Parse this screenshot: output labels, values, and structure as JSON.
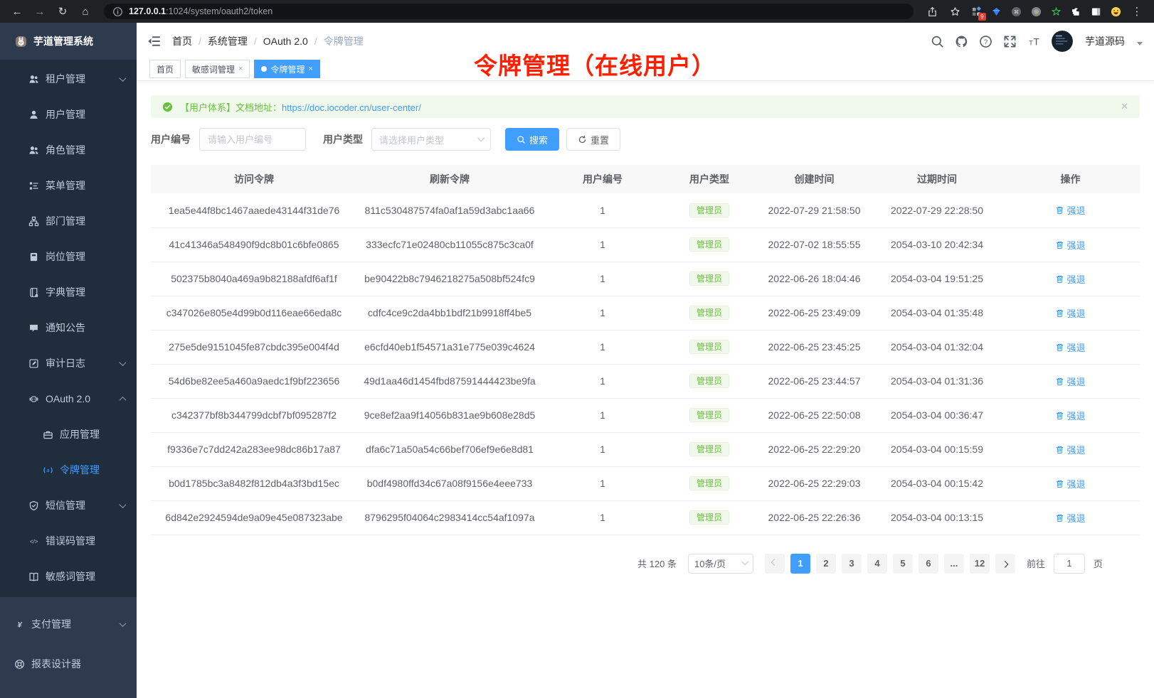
{
  "browser": {
    "url_host": "127.0.0.1",
    "url_rest": ":1024/system/oauth2/token",
    "extension_badge": "9"
  },
  "app": {
    "title": "芋道管理系统"
  },
  "sidebar": {
    "items": [
      {
        "label": "租户管理",
        "icon": "people"
      },
      {
        "label": "用户管理",
        "icon": "user"
      },
      {
        "label": "角色管理",
        "icon": "people"
      },
      {
        "label": "菜单管理",
        "icon": "tree"
      },
      {
        "label": "部门管理",
        "icon": "org"
      },
      {
        "label": "岗位管理",
        "icon": "badge"
      },
      {
        "label": "字典管理",
        "icon": "dict"
      },
      {
        "label": "通知公告",
        "icon": "bubble"
      },
      {
        "label": "审计日志",
        "icon": "edit"
      },
      {
        "label": "OAuth 2.0",
        "icon": "robot"
      },
      {
        "label": "应用管理",
        "icon": "briefcase"
      },
      {
        "label": "令牌管理",
        "icon": "signal",
        "active": true
      },
      {
        "label": "短信管理",
        "icon": "shield"
      },
      {
        "label": "错误码管理",
        "icon": "code"
      },
      {
        "label": "敏感词管理",
        "icon": "openbook"
      },
      {
        "label": "支付管理",
        "icon": "yen"
      },
      {
        "label": "报表设计器",
        "icon": "lifebuoy"
      }
    ]
  },
  "navbar": {
    "breadcrumbs": [
      "首页",
      "系统管理",
      "OAuth 2.0",
      "令牌管理"
    ],
    "username": "芋道源码"
  },
  "annotation": {
    "text": "令牌管理（在线用户）"
  },
  "tabs": [
    {
      "label": "首页"
    },
    {
      "label": "敏感词管理"
    },
    {
      "label": "令牌管理"
    }
  ],
  "alert": {
    "text": "【用户体系】文档地址：",
    "link": "https://doc.iocoder.cn/user-center/"
  },
  "filters": {
    "user_id_label": "用户编号",
    "user_id_placeholder": "请输入用户编号",
    "user_type_label": "用户类型",
    "user_type_placeholder": "请选择用户类型",
    "search_label": "搜索",
    "reset_label": "重置"
  },
  "table": {
    "columns": [
      "访问令牌",
      "刷新令牌",
      "用户编号",
      "用户类型",
      "创建时间",
      "过期时间",
      "操作"
    ],
    "rows": [
      {
        "access": "1ea5e44f8bc1467aaede43144f31de76",
        "refresh": "811c530487574fa0af1a59d3abc1aa66",
        "user_id": "1",
        "user_type": "管理员",
        "created": "2022-07-29 21:58:50",
        "expires": "2022-07-29 22:28:50",
        "action": "强退"
      },
      {
        "access": "41c41346a548490f9dc8b01c6bfe0865",
        "refresh": "333ecfc71e02480cb11055c875c3ca0f",
        "user_id": "1",
        "user_type": "管理员",
        "created": "2022-07-02 18:55:55",
        "expires": "2054-03-10 20:42:34",
        "action": "强退"
      },
      {
        "access": "502375b8040a469a9b82188afdf6af1f",
        "refresh": "be90422b8c7946218275a508bf524fc9",
        "user_id": "1",
        "user_type": "管理员",
        "created": "2022-06-26 18:04:46",
        "expires": "2054-03-04 19:51:25",
        "action": "强退"
      },
      {
        "access": "c347026e805e4d99b0d116eae66eda8c",
        "refresh": "cdfc4ce9c2da4bb1bdf21b9918ff4be5",
        "user_id": "1",
        "user_type": "管理员",
        "created": "2022-06-25 23:49:09",
        "expires": "2054-03-04 01:35:48",
        "action": "强退"
      },
      {
        "access": "275e5de9151045fe87cbdc395e004f4d",
        "refresh": "e6cfd40eb1f54571a31e775e039c4624",
        "user_id": "1",
        "user_type": "管理员",
        "created": "2022-06-25 23:45:25",
        "expires": "2054-03-04 01:32:04",
        "action": "强退"
      },
      {
        "access": "54d6be82ee5a460a9aedc1f9bf223656",
        "refresh": "49d1aa46d1454fbd87591444423be9fa",
        "user_id": "1",
        "user_type": "管理员",
        "created": "2022-06-25 23:44:57",
        "expires": "2054-03-04 01:31:36",
        "action": "强退"
      },
      {
        "access": "c342377bf8b344799dcbf7bf095287f2",
        "refresh": "9ce8ef2aa9f14056b831ae9b608e28d5",
        "user_id": "1",
        "user_type": "管理员",
        "created": "2022-06-25 22:50:08",
        "expires": "2054-03-04 00:36:47",
        "action": "强退"
      },
      {
        "access": "f9336e7c7dd242a283ee98dc86b17a87",
        "refresh": "dfa6c71a50a54c66bef706ef9e6e8d81",
        "user_id": "1",
        "user_type": "管理员",
        "created": "2022-06-25 22:29:20",
        "expires": "2054-03-04 00:15:59",
        "action": "强退"
      },
      {
        "access": "b0d1785bc3a8482f812db4a3f3bd15ec",
        "refresh": "b0df4980ffd34c67a08f9156e4eee733",
        "user_id": "1",
        "user_type": "管理员",
        "created": "2022-06-25 22:29:03",
        "expires": "2054-03-04 00:15:42",
        "action": "强退"
      },
      {
        "access": "6d842e2924594de9a09e45e087323abe",
        "refresh": "8796295f04064c2983414cc54af1097a",
        "user_id": "1",
        "user_type": "管理员",
        "created": "2022-06-25 22:26:36",
        "expires": "2054-03-04 00:13:15",
        "action": "强退"
      }
    ]
  },
  "pagination": {
    "total": "共 120 条",
    "page_size": "10条/页",
    "pages": [
      "1",
      "2",
      "3",
      "4",
      "5",
      "6",
      "...",
      "12"
    ],
    "active_page": "1",
    "goto_label": "前往",
    "goto_value": "1",
    "goto_suffix": "页"
  },
  "colors": {
    "accent": "#409eff",
    "success": "#67c23a",
    "annotation_red": "#ff1e00",
    "sidebar_dark": "#1f2d3d",
    "sidebar_base": "#2e3b4e"
  }
}
